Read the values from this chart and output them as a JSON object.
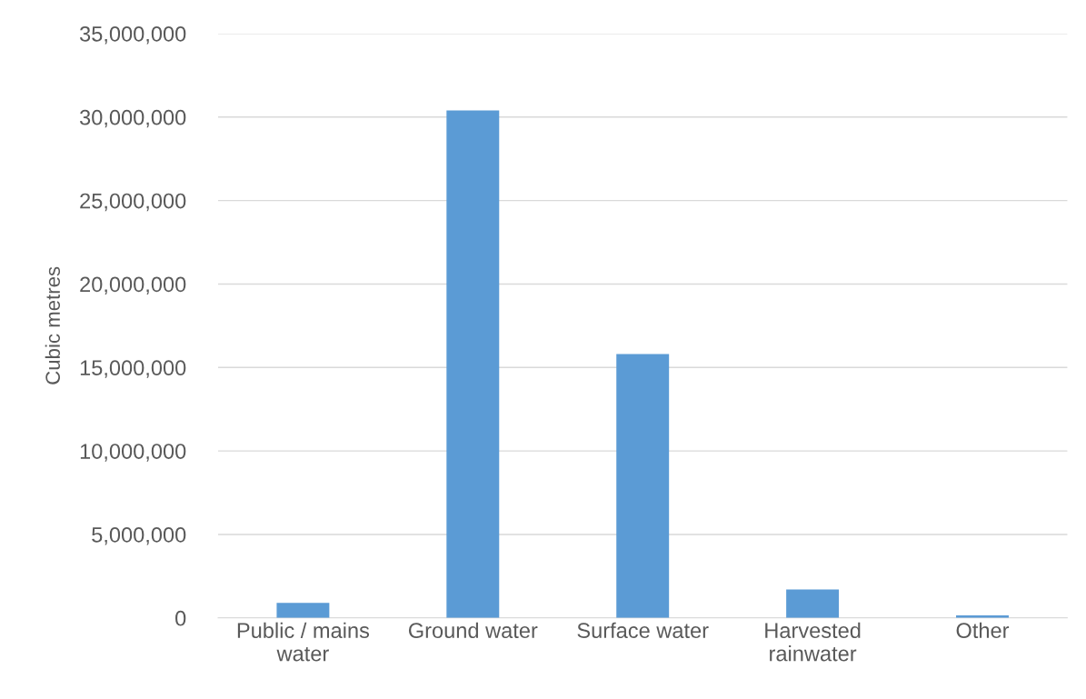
{
  "chart_data": {
    "type": "bar",
    "ylabel": "Cubic metres",
    "categories": [
      "Public / mains\nwater",
      "Ground water",
      "Surface water",
      "Harvested\nrainwater",
      "Other"
    ],
    "values": [
      900000,
      30400000,
      15800000,
      1700000,
      150000
    ],
    "color": "#5b9bd5",
    "ylim": [
      0,
      35000000
    ],
    "yticks": [
      {
        "value": 0,
        "label": "0"
      },
      {
        "value": 5000000,
        "label": "5,000,000"
      },
      {
        "value": 10000000,
        "label": "10,000,000"
      },
      {
        "value": 15000000,
        "label": "15,000,000"
      },
      {
        "value": 20000000,
        "label": "20,000,000"
      },
      {
        "value": 25000000,
        "label": "25,000,000"
      },
      {
        "value": 30000000,
        "label": "30,000,000"
      },
      {
        "value": 35000000,
        "label": "35,000,000"
      }
    ],
    "grid": "y",
    "legend": false
  }
}
